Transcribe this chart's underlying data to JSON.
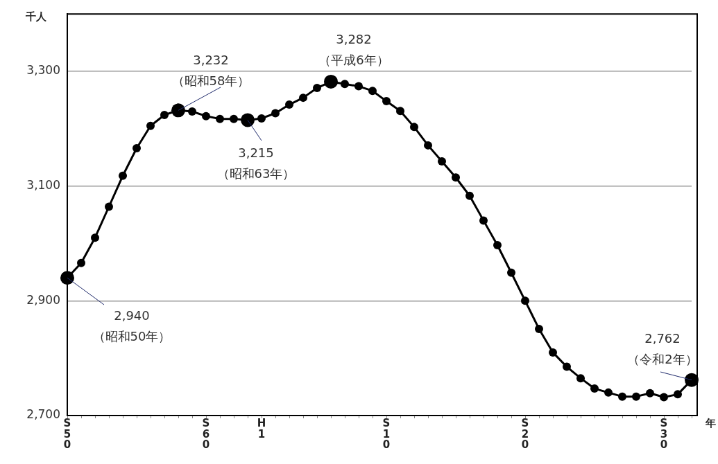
{
  "chart_data": {
    "type": "line",
    "ylabel": "千人",
    "xlabel": "年",
    "categories": [
      "S50",
      null,
      null,
      null,
      null,
      null,
      null,
      null,
      null,
      null,
      "S60",
      null,
      null,
      null,
      "H1",
      null,
      null,
      null,
      null,
      null,
      null,
      null,
      null,
      "S10",
      null,
      null,
      null,
      null,
      null,
      null,
      null,
      null,
      null,
      "S20",
      null,
      null,
      null,
      null,
      null,
      null,
      null,
      null,
      null,
      "S30",
      null,
      null
    ],
    "values": [
      2940,
      2966,
      3010,
      3064,
      3118,
      3166,
      3205,
      3224,
      3232,
      3230,
      3222,
      3217,
      3217,
      3215,
      3218,
      3227,
      3242,
      3254,
      3271,
      3282,
      3278,
      3274,
      3266,
      3248,
      3231,
      3203,
      3171,
      3143,
      3115,
      3083,
      3040,
      2997,
      2949,
      2900,
      2851,
      2810,
      2785,
      2765,
      2747,
      2740,
      2733,
      2733,
      2739,
      2732,
      2737,
      2762
    ],
    "value_labels": [
      "2,940",
      null,
      null,
      null,
      null,
      null,
      null,
      null,
      "3,232",
      null,
      null,
      null,
      null,
      "3,215",
      null,
      null,
      null,
      null,
      null,
      "3,282",
      null,
      null,
      null,
      null,
      null,
      null,
      null,
      null,
      null,
      null,
      null,
      null,
      null,
      null,
      null,
      null,
      null,
      null,
      null,
      null,
      null,
      null,
      null,
      null,
      null,
      "2,762"
    ],
    "annotations": [
      "（昭和50年）",
      {
        "text": "（昭和58年）",
        "y": 3232
      },
      "（昭和63年）",
      "（平成6年）",
      "（令和2年）"
    ],
    "color": "#000000",
    "marker": "circle",
    "line_style": "solid",
    "ylim": [
      2700,
      3400
    ],
    "yticks": [
      {
        "value": 2700,
        "label": "2,700"
      },
      {
        "value": 2900,
        "label": "2,900"
      },
      {
        "value": 3100,
        "label": "3,100"
      },
      {
        "value": 3300,
        "label": "3,300"
      }
    ],
    "grid": "y",
    "legend": false
  }
}
